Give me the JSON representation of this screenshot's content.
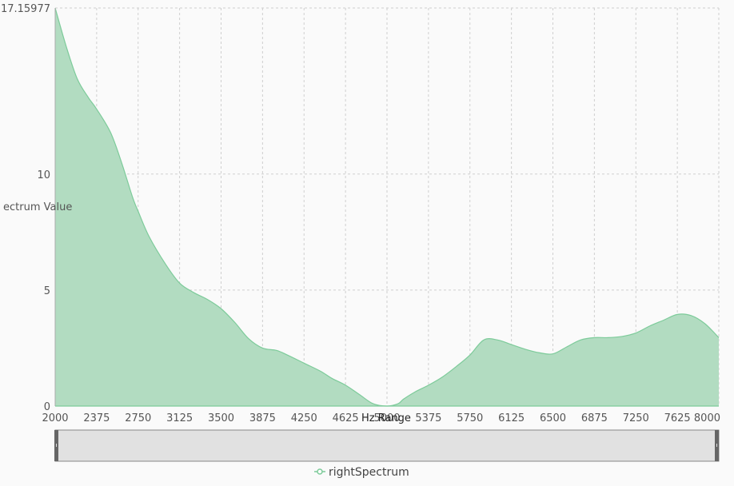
{
  "chart_data": {
    "type": "area",
    "xlabel": "Hz Range",
    "ylabel": "ectrum Value",
    "xlim": [
      2000,
      8000
    ],
    "ylim": [
      0,
      17.15977
    ],
    "xticks": [
      2000,
      2375,
      2750,
      3125,
      3500,
      3875,
      4250,
      4625,
      5000,
      5375,
      5750,
      6125,
      6500,
      6875,
      7250,
      7625,
      8000
    ],
    "yticks": [
      0,
      5,
      10
    ],
    "ymax_label": "17.15977",
    "grid": true,
    "legend_position": "bottom",
    "series": [
      {
        "name": "rightSpectrum",
        "color": "#7dcb9a",
        "fill": "#b2dcc1",
        "x": [
          2000,
          2100,
          2200,
          2300,
          2375,
          2500,
          2600,
          2700,
          2750,
          2850,
          3000,
          3125,
          3250,
          3375,
          3500,
          3625,
          3750,
          3875,
          4000,
          4100,
          4250,
          4400,
          4500,
          4625,
          4750,
          4875,
          5000,
          5100,
          5150,
          5250,
          5375,
          5500,
          5625,
          5750,
          5875,
          6000,
          6125,
          6250,
          6375,
          6500,
          6625,
          6750,
          6875,
          7000,
          7125,
          7250,
          7375,
          7500,
          7625,
          7750,
          7875,
          8000
        ],
        "y": [
          17.16,
          15.5,
          14.1,
          13.3,
          12.8,
          11.8,
          10.5,
          9.0,
          8.4,
          7.3,
          6.1,
          5.3,
          4.9,
          4.6,
          4.2,
          3.6,
          2.9,
          2.5,
          2.4,
          2.2,
          1.85,
          1.5,
          1.2,
          0.9,
          0.5,
          0.1,
          0.0,
          0.1,
          0.3,
          0.6,
          0.9,
          1.25,
          1.7,
          2.2,
          2.85,
          2.85,
          2.65,
          2.45,
          2.3,
          2.25,
          2.55,
          2.85,
          2.95,
          2.95,
          3.0,
          3.15,
          3.45,
          3.7,
          3.95,
          3.9,
          3.55,
          2.95
        ]
      }
    ]
  },
  "legend": {
    "label": "rightSpectrum"
  }
}
